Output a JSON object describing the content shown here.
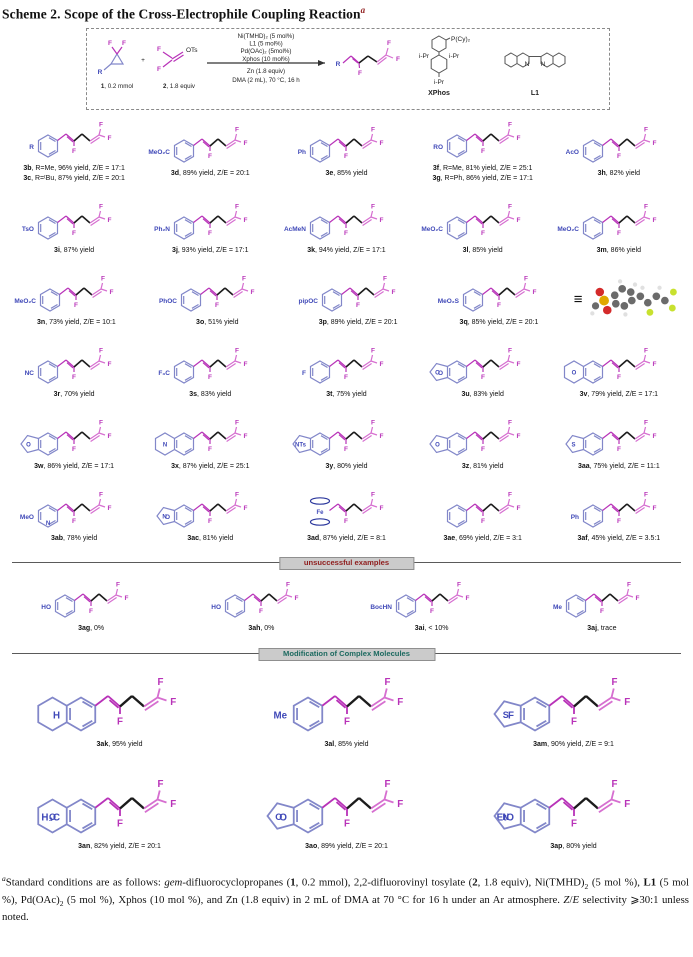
{
  "title": {
    "text": "Scheme 2. Scope of the Cross-Electrophile Coupling Reaction",
    "footnote_mark": "a"
  },
  "atoms": {
    "F": "F",
    "R": "R",
    "OTs": "OTs",
    "plus": "+",
    "N": "N",
    "Fe": "Fe",
    "PCy2": "P(Cy)₂",
    "iPr": "i-Pr",
    "O": "O",
    "S": "S"
  },
  "reaction": {
    "conditions_above": [
      "Ni(TMHD)₂ (5 mol%)",
      "L1 (5 mol%)",
      "Pd(OAc)₂ (5mol%)",
      "Xphos (10 mol%)"
    ],
    "conditions_below": [
      "Zn (1.8 equiv)",
      "DMA (2 mL), 70 °C, 16 h"
    ],
    "reactant1_num": "1",
    "reactant1_rest": ", 0.2 mmol",
    "reactant2_num": "2",
    "reactant2_rest": ", 1.8 equiv",
    "ligand_phos_name": "XPhos",
    "ligand_bipy_name": "L1"
  },
  "model3d": {
    "equiv_symbol": "≡",
    "carbon": "#6b6b6b",
    "hydrogen": "#e0e0e0",
    "oxygen": "#d42a2a",
    "sulfur": "#e0a800",
    "fluorine": "#c8e12f"
  },
  "banners": {
    "unsuccessful": {
      "text": "unsuccessful examples",
      "color": "#8f1d1d"
    },
    "complex": {
      "text": "Modification of Complex Molecules",
      "color": "#1d6a60"
    }
  },
  "sections": [
    {
      "rows": [
        {
          "tiles": [
            {
              "sub": "R",
              "lines": [
                [
                  "3b",
                  ", R=Me, 96% yield, Z/E = 17:1"
                ],
                [
                  "3c",
                  ", R=ᵗBu, 87% yield, Z/E = 20:1"
                ]
              ]
            },
            {
              "sub": "MeO₂C",
              "lines": [
                [
                  "3d",
                  ", 89% yield, Z/E = 20:1"
                ]
              ]
            },
            {
              "sub": "Ph",
              "lines": [
                [
                  "3e",
                  ", 85% yield"
                ]
              ]
            },
            {
              "sub": "RO",
              "lines": [
                [
                  "3f",
                  ", R=Me, 81% yield, Z/E = 25:1"
                ],
                [
                  "3g",
                  ", R=Ph, 86% yield, Z/E = 17:1"
                ]
              ]
            },
            {
              "sub": "AcO",
              "lines": [
                [
                  "3h",
                  ", 82% yield"
                ]
              ]
            }
          ]
        },
        {
          "tiles": [
            {
              "sub": "TsO",
              "lines": [
                [
                  "3i",
                  ", 87% yield"
                ]
              ]
            },
            {
              "sub": "Ph₂N",
              "lines": [
                [
                  "3j",
                  ", 93% yield, Z/E = 17:1"
                ]
              ]
            },
            {
              "sub": "AcMeN",
              "lines": [
                [
                  "3k",
                  ", 94% yield, Z/E = 17:1"
                ]
              ]
            },
            {
              "sub": "MeO₂C",
              "lines": [
                [
                  "3l",
                  ", 85% yield"
                ]
              ]
            },
            {
              "sub": "MeO₂C",
              "lines": [
                [
                  "3m",
                  ", 86% yield"
                ]
              ]
            }
          ]
        },
        {
          "tiles": [
            {
              "sub": "MeO₂C",
              "lines": [
                [
                  "3n",
                  ", 73% yield, Z/E = 10:1"
                ]
              ]
            },
            {
              "sub": "PhOC",
              "lines": [
                [
                  "3o",
                  ", 51% yield"
                ]
              ]
            },
            {
              "sub": "pipOC",
              "lines": [
                [
                  "3p",
                  ", 89% yield, Z/E = 20:1"
                ]
              ]
            },
            {
              "sub": "MeO₂S",
              "lines": [
                [
                  "3q",
                  ", 85% yield, Z/E = 20:1"
                ]
              ]
            },
            {
              "type": "model"
            }
          ]
        },
        {
          "tiles": [
            {
              "sub": "NC",
              "lines": [
                [
                  "3r",
                  ", 70% yield"
                ]
              ]
            },
            {
              "sub": "F₃C",
              "lines": [
                [
                  "3s",
                  ", 83% yield"
                ]
              ]
            },
            {
              "sub": "F",
              "lines": [
                [
                  "3t",
                  ", 75% yield"
                ]
              ]
            },
            {
              "variant": "penta",
              "het": "O",
              "sub": "O",
              "lines": [
                [
                  "3u",
                  ", 83% yield"
                ]
              ]
            },
            {
              "variant": "fused",
              "het": "O",
              "lines": [
                [
                  "3v",
                  ", 79% yield, Z/E = 17:1"
                ]
              ]
            }
          ]
        },
        {
          "tiles": [
            {
              "variant": "penta",
              "het": "O",
              "lines": [
                [
                  "3w",
                  ", 86% yield, Z/E = 17:1"
                ]
              ]
            },
            {
              "variant": "fused",
              "het": "N",
              "lines": [
                [
                  "3x",
                  ", 87% yield, Z/E = 25:1"
                ]
              ]
            },
            {
              "variant": "penta",
              "het": "NTs",
              "lines": [
                [
                  "3y",
                  ", 80% yield"
                ]
              ]
            },
            {
              "variant": "penta",
              "het": "O",
              "lines": [
                [
                  "3z",
                  ", 81% yield"
                ]
              ]
            },
            {
              "variant": "penta",
              "het": "S",
              "lines": [
                [
                  "3aa",
                  ", 75% yield, Z/E = 11:1"
                ]
              ]
            }
          ]
        },
        {
          "tiles": [
            {
              "sub": "MeO",
              "het": "N",
              "lines": [
                [
                  "3ab",
                  ", 78% yield"
                ]
              ]
            },
            {
              "variant": "penta",
              "het": "N",
              "sub": "O",
              "lines": [
                [
                  "3ac",
                  ", 81% yield"
                ]
              ]
            },
            {
              "variant": "ferro",
              "het": "Fe",
              "lines": [
                [
                  "3ad",
                  ", 87% yield, Z/E = 8:1"
                ]
              ]
            },
            {
              "lines": [
                [
                  "3ae",
                  ", 69% yield, Z/E = 3:1"
                ]
              ]
            },
            {
              "sub": "Ph",
              "lines": [
                [
                  "3af",
                  ", 45% yield, Z/E = 3.5:1"
                ]
              ]
            }
          ]
        }
      ]
    },
    {
      "banner": "unsuccessful",
      "rows": [
        {
          "tiles": [
            {
              "sub": "HO",
              "lines": [
                [
                  "3ag",
                  ", 0%"
                ]
              ]
            },
            {
              "sub": "HO",
              "lines": [
                [
                  "3ah",
                  ", 0%"
                ]
              ]
            },
            {
              "sub": "BocHN",
              "lines": [
                [
                  "3ai",
                  ", < 10%"
                ]
              ]
            },
            {
              "sub": "Me",
              "lines": [
                [
                  "3aj",
                  ", trace"
                ]
              ]
            }
          ]
        }
      ]
    },
    {
      "banner": "complex",
      "rows": [
        {
          "big": true,
          "tiles": [
            {
              "variant": "fused",
              "sub": "H",
              "lines": [
                [
                  "3ak",
                  ", 95% yield"
                ]
              ]
            },
            {
              "sub": "Me",
              "lines": [
                [
                  "3al",
                  ", 85% yield"
                ]
              ]
            },
            {
              "variant": "penta",
              "het": "S",
              "sub": "F",
              "lines": [
                [
                  "3am",
                  ", 90% yield, Z/E = 9:1"
                ]
              ]
            }
          ]
        },
        {
          "big": true,
          "tiles": [
            {
              "variant": "fused",
              "het": "O",
              "sub": "H₃C",
              "lines": [
                [
                  "3an",
                  ", 82% yield, Z/E = 20:1"
                ]
              ]
            },
            {
              "variant": "penta",
              "het": "O",
              "sub": "O",
              "lines": [
                [
                  "3ao",
                  ", 89% yield, Z/E = 20:1"
                ]
              ]
            },
            {
              "variant": "penta",
              "het": "N",
              "sub": "EtO",
              "lines": [
                [
                  "3ap",
                  ", 80% yield"
                ]
              ]
            }
          ]
        }
      ]
    }
  ],
  "footnote": [
    {
      "t": "a",
      "sup": true,
      "i": true
    },
    {
      "t": "Standard conditions are as follows: "
    },
    {
      "t": "gem",
      "i": true
    },
    {
      "t": "-difluorocyclopropanes ("
    },
    {
      "t": "1",
      "b": true
    },
    {
      "t": ", 0.2 mmol), 2,2-difluorovinyl tosylate ("
    },
    {
      "t": "2",
      "b": true
    },
    {
      "t": ", 1.8 equiv), Ni(TMHD)"
    },
    {
      "t": "2",
      "sb": true
    },
    {
      "t": " (5 mol %), "
    },
    {
      "t": "L1",
      "b": true
    },
    {
      "t": " (5 mol %), Pd(OAc)"
    },
    {
      "t": "2",
      "sb": true
    },
    {
      "t": " (5 mol %), Xphos (10 mol %), and Zn (1.8 equiv) in 2 mL of DMA at 70 °C for 16 h under an Ar atmosphere. "
    },
    {
      "t": "Z",
      "i": true
    },
    {
      "t": "/"
    },
    {
      "t": "E",
      "i": true
    },
    {
      "t": " selectivity ⩾30:1 unless noted."
    }
  ]
}
